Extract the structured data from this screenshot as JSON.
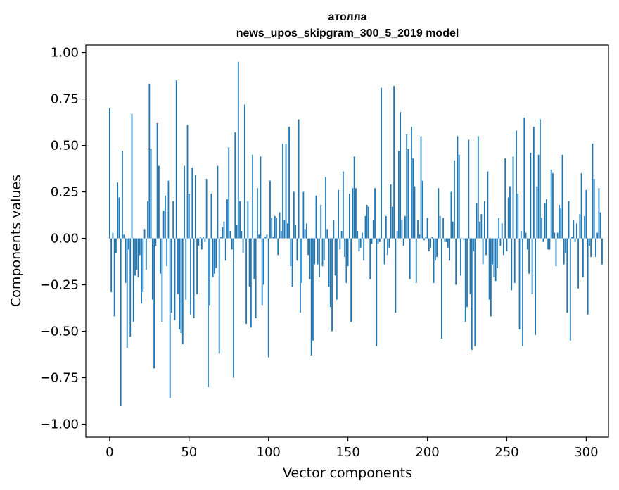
{
  "chart_data": {
    "type": "bar",
    "title_line1": "атолла",
    "title_line2": "news_upos_skipgram_300_5_2019 model",
    "xlabel": "Vector components",
    "ylabel": "Components values",
    "xlim": [
      -15,
      314
    ],
    "ylim": [
      -1.07,
      1.04
    ],
    "x_ticks": [
      0,
      50,
      100,
      150,
      200,
      250,
      300
    ],
    "x_tick_labels": [
      "0",
      "50",
      "100",
      "150",
      "200",
      "250",
      "300"
    ],
    "y_ticks": [
      1.0,
      0.75,
      0.5,
      0.25,
      0.0,
      -0.25,
      -0.5,
      -0.75,
      -1.0
    ],
    "y_tick_labels": [
      "1.00",
      "0.75",
      "0.50",
      "0.25",
      "0.00",
      "−0.25",
      "−0.50",
      "−0.75",
      "−1.00"
    ],
    "bar_color": "#1f77b4",
    "values": [
      0.7,
      -0.29,
      0.03,
      -0.42,
      -0.08,
      0.3,
      0.22,
      -0.9,
      0.47,
      0.02,
      -0.24,
      -0.59,
      -0.06,
      -0.53,
      0.67,
      -0.45,
      -0.2,
      -0.17,
      -0.21,
      -0.09,
      -0.35,
      -0.29,
      0.05,
      -0.17,
      0.2,
      0.83,
      0.48,
      -0.33,
      -0.7,
      -0.04,
      0.62,
      0.39,
      -0.19,
      -0.45,
      0.15,
      0.23,
      -0.15,
      0.31,
      -0.86,
      -0.4,
      0.2,
      -0.44,
      0.85,
      -0.3,
      -0.49,
      -0.51,
      -0.57,
      0.39,
      -0.33,
      0.61,
      0.24,
      -0.41,
      0.38,
      -0.43,
      0.34,
      -0.3,
      -0.04,
      0.01,
      -0.06,
      0.01,
      -0.02,
      0.32,
      -0.8,
      -0.36,
      0.24,
      -0.21,
      -0.19,
      -0.16,
      0.39,
      -0.62,
      0.01,
      0.06,
      0.09,
      -0.12,
      0.21,
      0.49,
      0.04,
      -0.06,
      -0.75,
      0.57,
      0.07,
      0.95,
      0.2,
      0.04,
      -0.08,
      0.72,
      -0.46,
      0.2,
      -0.26,
      -0.48,
      0.45,
      -0.22,
      -0.43,
      0.27,
      0.02,
      0.44,
      -0.36,
      -0.25,
      0.01,
      0.02,
      -0.64,
      0.31,
      0.11,
      0.01,
      0.12,
      0.11,
      -0.09,
      0.14,
      0.04,
      0.51,
      0.1,
      0.51,
      0.08,
      0.6,
      -0.15,
      -0.26,
      0.25,
      0.07,
      -0.12,
      0.64,
      -0.4,
      -0.24,
      0.25,
      0.05,
      0.08,
      -0.09,
      -0.22,
      -0.63,
      -0.55,
      -0.14,
      0.23,
      -0.14,
      -0.21,
      0.18,
      -0.15,
      -0.12,
      0.33,
      0.05,
      -0.26,
      -0.37,
      -0.5,
      0.1,
      -0.2,
      -0.33,
      0.26,
      -0.06,
      0.04,
      0.36,
      -0.1,
      -0.24,
      -0.15,
      0.24,
      -0.45,
      0.27,
      0.44,
      0.27,
      0.04,
      -0.07,
      -0.05,
      0.03,
      -0.12,
      0.12,
      0.18,
      0.17,
      -0.22,
      -0.03,
      0.1,
      0.27,
      -0.58,
      -0.03,
      -0.02,
      0.81,
      0.0,
      -0.14,
      0.12,
      -0.09,
      -0.05,
      0.29,
      0.17,
      0.82,
      -0.4,
      0.04,
      0.47,
      0.68,
      0.1,
      -0.04,
      0.12,
      0.56,
      0.48,
      -0.22,
      0.6,
      0.43,
      0.28,
      -0.24,
      0.1,
      0.02,
      0.55,
      0.31,
      -0.01,
      0.01,
      0.11,
      -0.07,
      -0.05,
      0.01,
      -0.24,
      -0.12,
      -0.1,
      0.27,
      0.12,
      -0.54,
      0.11,
      -0.02,
      -0.02,
      -0.05,
      -0.12,
      0.25,
      0.09,
      0.42,
      -0.25,
      0.55,
      0.45,
      -0.2,
      0.0,
      -0.01,
      -0.45,
      -0.37,
      0.53,
      -0.3,
      -0.6,
      -0.07,
      -0.58,
      0.19,
      0.55,
      0.09,
      0.13,
      -0.14,
      0.2,
      -0.09,
      0.36,
      -0.33,
      -0.42,
      -0.14,
      -0.21,
      -0.23,
      -0.16,
      0.11,
      -0.04,
      0.08,
      -0.09,
      0.43,
      -0.07,
      0.22,
      0.28,
      -0.28,
      0.44,
      -0.24,
      0.58,
      0.24,
      -0.49,
      0.04,
      -0.58,
      0.65,
      0.03,
      -0.06,
      -0.19,
      0.46,
      -0.3,
      0.6,
      -0.52,
      0.28,
      0.45,
      0.64,
      0.11,
      -0.02,
      0.19,
      0.21,
      -0.06,
      -0.06,
      0.37,
      0.35,
      0.03,
      -0.15,
      0.03,
      0.18,
      0.16,
      0.45,
      -0.14,
      -0.08,
      -0.4,
      0.2,
      -0.55,
      0.01,
      0.1,
      -0.02,
      0.08,
      -0.27,
      0.13,
      0.35,
      -0.21,
      0.12,
      0.26,
      -0.41,
      -0.04,
      -0.1,
      0.51,
      0.32,
      -0.1,
      0.03,
      0.27,
      0.14,
      -0.14
    ],
    "grid": false,
    "legend": "none"
  }
}
